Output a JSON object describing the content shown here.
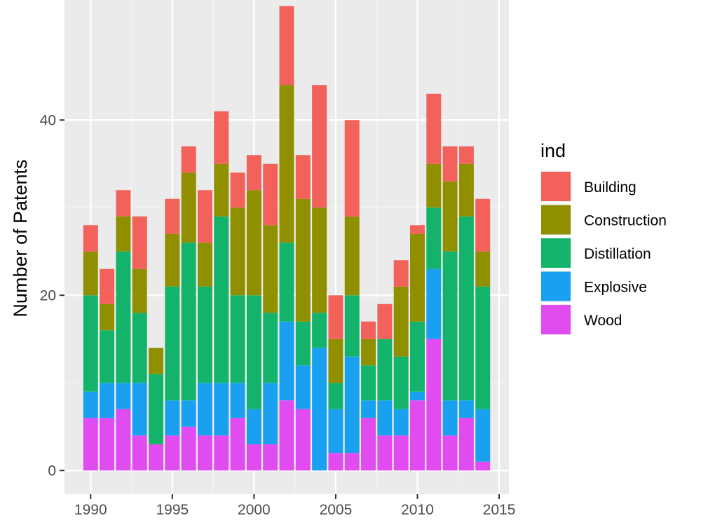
{
  "chart_data": {
    "type": "bar",
    "stacked": true,
    "title": "",
    "xlabel": "",
    "ylabel": "Number of Patents",
    "x": [
      1990,
      1991,
      1992,
      1993,
      1994,
      1995,
      1996,
      1997,
      1998,
      1999,
      2000,
      2001,
      2002,
      2003,
      2004,
      2005,
      2006,
      2007,
      2008,
      2009,
      2010,
      2011,
      2012,
      2013,
      2014
    ],
    "xlim": [
      1988.4,
      2015.6
    ],
    "ylim": [
      -2.7,
      53.7
    ],
    "x_ticks": [
      1990,
      1995,
      2000,
      2005,
      2010,
      2015
    ],
    "y_ticks": [
      0,
      20,
      40
    ],
    "legend": {
      "title": "ind",
      "position": "right"
    },
    "background": "#ebebeb",
    "grid": true,
    "series": [
      {
        "name": "Wood",
        "color": "#e04cf0",
        "values": [
          6,
          6,
          7,
          4,
          3,
          4,
          5,
          4,
          4,
          6,
          3,
          3,
          8,
          7,
          0,
          2,
          2,
          6,
          4,
          4,
          8,
          15,
          4,
          6,
          1
        ]
      },
      {
        "name": "Explosive",
        "color": "#1aa0f0",
        "values": [
          3,
          4,
          3,
          6,
          0,
          4,
          3,
          6,
          6,
          4,
          4,
          7,
          9,
          5,
          14,
          5,
          11,
          2,
          4,
          3,
          1,
          8,
          4,
          2,
          6
        ]
      },
      {
        "name": "Distillation",
        "color": "#14b36b",
        "values": [
          11,
          6,
          15,
          8,
          8,
          13,
          18,
          11,
          19,
          10,
          13,
          8,
          9,
          5,
          4,
          3,
          7,
          4,
          7,
          6,
          8,
          7,
          17,
          21,
          14
        ]
      },
      {
        "name": "Construction",
        "color": "#8f8f00",
        "values": [
          5,
          3,
          4,
          5,
          3,
          6,
          8,
          5,
          6,
          10,
          12,
          10,
          18,
          14,
          12,
          5,
          9,
          3,
          0,
          8,
          10,
          5,
          8,
          6,
          4
        ]
      },
      {
        "name": "Building",
        "color": "#f2625b",
        "values": [
          3,
          4,
          3,
          6,
          0,
          4,
          3,
          6,
          6,
          4,
          4,
          7,
          9,
          5,
          14,
          5,
          11,
          2,
          4,
          3,
          1,
          8,
          4,
          2,
          6
        ]
      }
    ],
    "legend_order": [
      "Building",
      "Construction",
      "Distillation",
      "Explosive",
      "Wood"
    ]
  }
}
